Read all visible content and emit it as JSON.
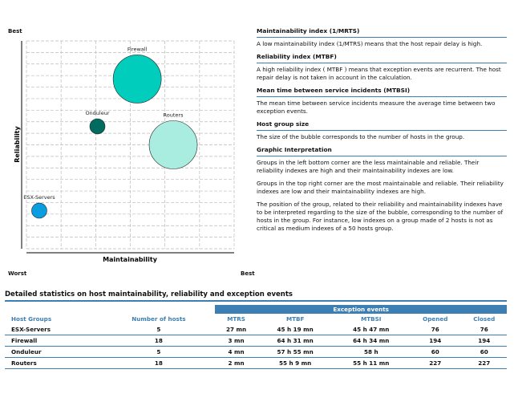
{
  "chart_data": {
    "type": "scatter",
    "xlabel": "Maintainability",
    "ylabel": "Reliability",
    "corner_labels": {
      "top": "Best",
      "bottom_left": "Worst",
      "bottom_right": "Best"
    },
    "xlim": [
      0,
      6
    ],
    "ylim": [
      0,
      18
    ],
    "grid": true,
    "points": [
      {
        "name": "Firewall",
        "x": 3.2,
        "y": 14.7,
        "size": 18,
        "color": "#00cdbc"
      },
      {
        "name": "Routers",
        "x": 4.24,
        "y": 9.0,
        "size": 18,
        "color": "#a8ede0"
      },
      {
        "name": "Onduleur",
        "x": 2.05,
        "y": 10.6,
        "size": 5,
        "color": "#006b5e"
      },
      {
        "name": "ESX-Servers",
        "x": 0.37,
        "y": 3.3,
        "size": 5,
        "color": "#0a9ee0"
      }
    ]
  },
  "legend": [
    {
      "title": "Maintainability index (1/MRTS)",
      "texts": [
        "A low maintainability index (1/MTRS) means that the host repair delay is high."
      ]
    },
    {
      "title": "Reliability index (MTBF)",
      "texts": [
        "A high reliability index ( MTBF ) means that exception events are recurrent. The host repair delay is not taken in account in the calculation."
      ]
    },
    {
      "title": "Mean time between service incidents (MTBSI)",
      "texts": [
        "The mean time between service incidents measure the average time between two exception events."
      ]
    },
    {
      "title": "Host group size",
      "texts": [
        "The size of the bubble corresponds to the number of hosts in the group."
      ]
    },
    {
      "title": "Graphic Interpretation",
      "texts": [
        "Groups in the left bottom corner are the less maintainable and reliable. Their reliability indexes are high and their maintainability indexes are low.",
        "Groups in the top right corner are the most maintainable and reliable. Their reliability indexes are low and their maintainability indexes are high.",
        "The position of the group, related to their reliability and maintainability indexes have to be interpreted regarding to the size of the bubble, corresponding to the number of hosts in the group. For instance, low indexes on a group made of 2 hosts is not as critical as medium indexes of a 50 hosts group."
      ]
    }
  ],
  "table": {
    "title": "Detailed statistics on host maintainability, reliability and exception events",
    "group_header": "Exception events",
    "columns": [
      "Host Groups",
      "Number of hosts",
      "MTRS",
      "MTBF",
      "MTBSI",
      "Opened",
      "Closed"
    ],
    "rows": [
      [
        "ESX-Servers",
        "5",
        "27 mn",
        "45 h 19 mn",
        "45 h 47 mn",
        "76",
        "76"
      ],
      [
        "Firewall",
        "18",
        "3 mn",
        "64 h 31 mn",
        "64 h 34 mn",
        "194",
        "194"
      ],
      [
        "Onduleur",
        "5",
        "4 mn",
        "57 h 55 mn",
        "58 h",
        "60",
        "60"
      ],
      [
        "Routers",
        "18",
        "2 mn",
        "55 h 9 mn",
        "55 h 11 mn",
        "227",
        "227"
      ]
    ]
  }
}
